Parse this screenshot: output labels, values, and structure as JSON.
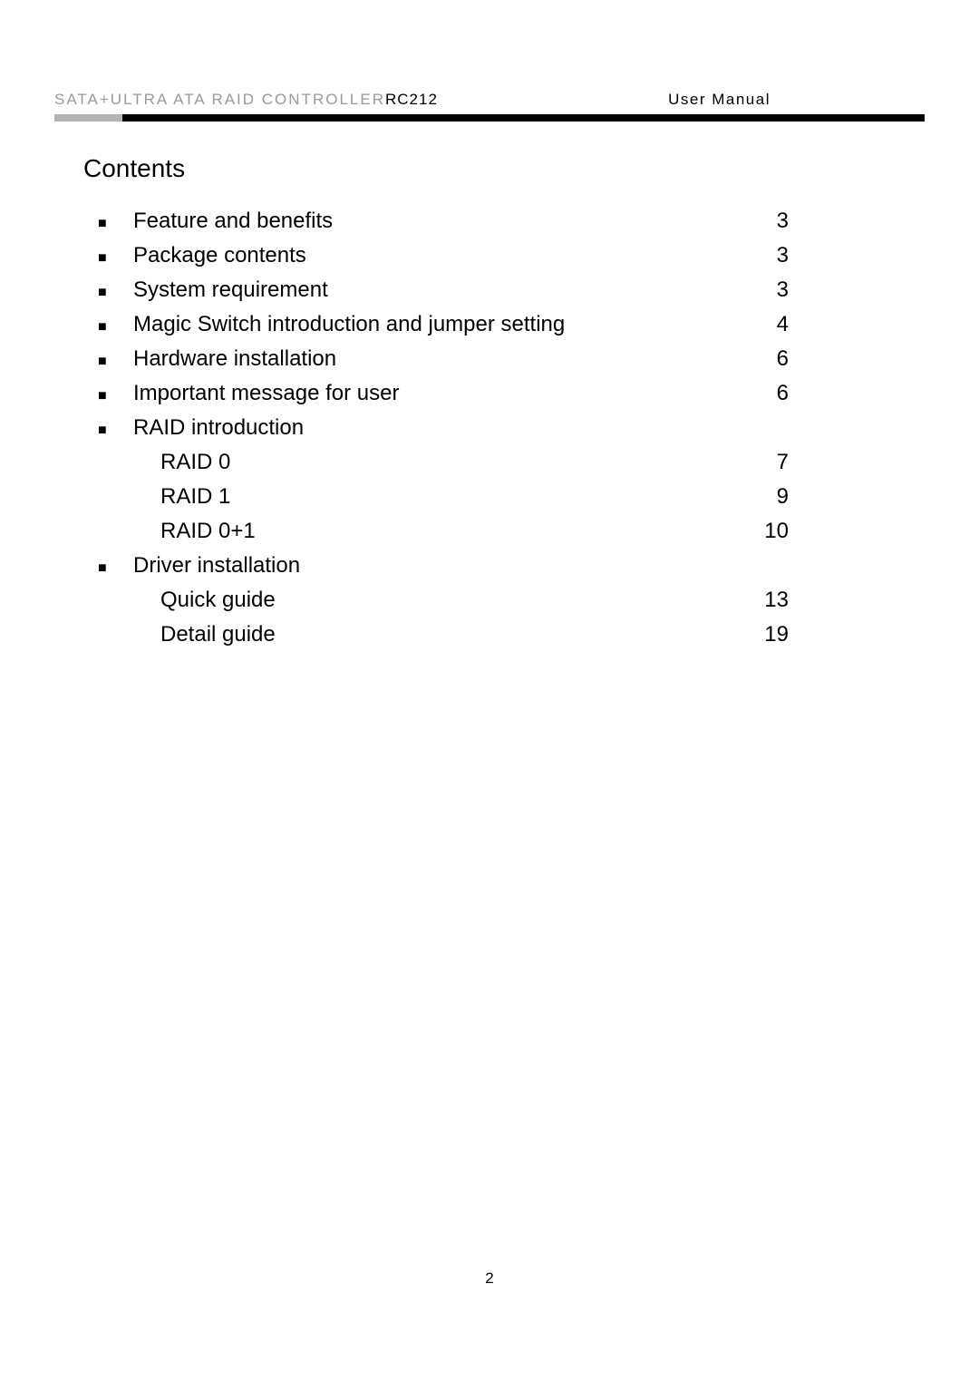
{
  "header": {
    "left_gray": "SATA+ULTRA ATA RAID CONTROLLER",
    "left_model": "RC212",
    "right": "User Manual"
  },
  "title": "Contents",
  "toc": [
    {
      "type": "bullet",
      "label": "Feature and benefits",
      "page": "3"
    },
    {
      "type": "bullet",
      "label": "Package contents",
      "page": "3"
    },
    {
      "type": "bullet",
      "label": "System requirement",
      "page": "3"
    },
    {
      "type": "bullet",
      "label": "Magic Switch introduction and jumper setting",
      "page": "4"
    },
    {
      "type": "bullet",
      "label": "Hardware installation",
      "page": "6"
    },
    {
      "type": "bullet",
      "label": "Important message for user",
      "page": "6"
    },
    {
      "type": "bullet",
      "label": "RAID introduction",
      "page": ""
    },
    {
      "type": "sub",
      "label": "RAID 0",
      "page": "7"
    },
    {
      "type": "sub",
      "label": "RAID 1",
      "page": "9"
    },
    {
      "type": "sub",
      "label": "RAID 0+1",
      "page": "10"
    },
    {
      "type": "bullet",
      "label": "Driver installation",
      "page": ""
    },
    {
      "type": "sub",
      "label": "Quick guide",
      "page": "13"
    },
    {
      "type": "sub",
      "label": "Detail guide",
      "page": "19"
    }
  ],
  "page_number": "2",
  "colors": {
    "gray_text": "#9a9a9a",
    "black_text": "#000000",
    "bar_gray": "#b3b3b3",
    "bar_black": "#000000",
    "background": "#ffffff"
  },
  "fonts": {
    "header_size": 17,
    "title_size": 28,
    "body_size": 24,
    "pagenum_size": 17
  }
}
